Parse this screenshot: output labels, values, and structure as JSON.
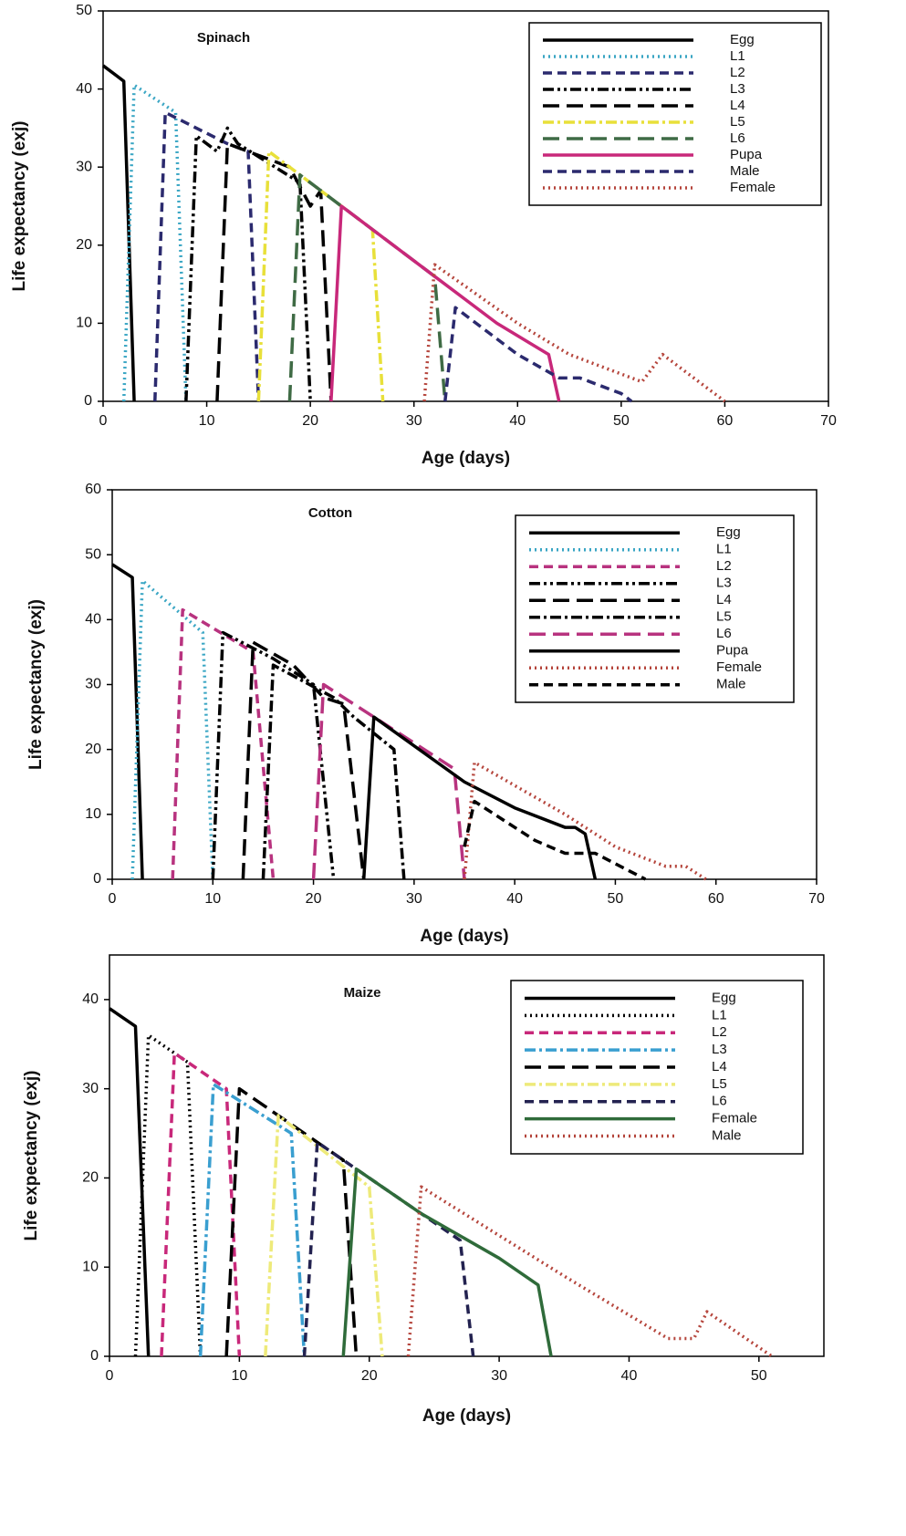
{
  "chart_data": [
    {
      "type": "line",
      "title": "Spinach",
      "xlabel": "Age (days)",
      "ylabel": "Life expectancy (exj)",
      "xlim": [
        0,
        70
      ],
      "xticks": [
        0,
        10,
        20,
        30,
        40,
        50,
        60,
        70
      ],
      "ylim": [
        0,
        50
      ],
      "yticks": [
        0,
        10,
        20,
        30,
        40,
        50
      ],
      "series": [
        {
          "name": "Egg",
          "color": "#000000",
          "dash": "solid",
          "x": [
            0,
            2,
            3
          ],
          "values": [
            43,
            41,
            0
          ]
        },
        {
          "name": "L1",
          "color": "#3aa6c4",
          "dash": "dotted",
          "x": [
            2,
            3,
            7,
            8
          ],
          "values": [
            0,
            40.5,
            37,
            0
          ]
        },
        {
          "name": "L2",
          "color": "#2b2a6e",
          "dash": "dashed",
          "x": [
            5,
            6,
            12,
            14,
            15
          ],
          "values": [
            0,
            37,
            33,
            32,
            0
          ]
        },
        {
          "name": "L3",
          "color": "#000000",
          "dash": "dashdotdot",
          "x": [
            8,
            9,
            11,
            12,
            13,
            19,
            20
          ],
          "values": [
            0,
            34,
            32,
            35,
            33,
            28,
            0
          ]
        },
        {
          "name": "L4",
          "color": "#000000",
          "dash": "longdash",
          "x": [
            11,
            12,
            18,
            20,
            21,
            22
          ],
          "values": [
            0,
            33,
            30,
            25,
            27,
            0
          ]
        },
        {
          "name": "L5",
          "color": "#e8e03a",
          "dash": "dashdot",
          "x": [
            15,
            16,
            26,
            27
          ],
          "values": [
            0,
            32,
            22,
            0
          ]
        },
        {
          "name": "L6",
          "color": "#3f6b45",
          "dash": "longdash",
          "x": [
            18,
            19,
            32,
            33
          ],
          "values": [
            0,
            29,
            16,
            0
          ]
        },
        {
          "name": "Pupa",
          "color": "#c8287a",
          "dash": "solid",
          "x": [
            22,
            23,
            32,
            38,
            43,
            44
          ],
          "values": [
            0,
            25,
            16,
            10,
            6,
            0
          ]
        },
        {
          "name": "Male",
          "color": "#2b2a6e",
          "dash": "dashed",
          "x": [
            33,
            34,
            40,
            44,
            46,
            50,
            51
          ],
          "values": [
            0,
            12,
            6,
            3,
            3,
            1,
            0
          ]
        },
        {
          "name": "Female",
          "color": "#b5453c",
          "dash": "dotted",
          "x": [
            31,
            32,
            40,
            45,
            50,
            52,
            54,
            57,
            60
          ],
          "values": [
            0,
            17.5,
            10,
            6,
            3.5,
            2.5,
            6,
            3,
            0
          ]
        }
      ]
    },
    {
      "type": "line",
      "title": "Cotton",
      "xlabel": "Age (days)",
      "ylabel": "Life expectancy (exj)",
      "xlim": [
        0,
        70
      ],
      "xticks": [
        0,
        10,
        20,
        30,
        40,
        50,
        60,
        70
      ],
      "ylim": [
        0,
        60
      ],
      "yticks": [
        0,
        10,
        20,
        30,
        40,
        50,
        60
      ],
      "series": [
        {
          "name": "Egg",
          "color": "#000000",
          "dash": "solid",
          "x": [
            0,
            2,
            3
          ],
          "values": [
            48.5,
            46.5,
            0
          ]
        },
        {
          "name": "L1",
          "color": "#3aa6c4",
          "dash": "dotted",
          "x": [
            2,
            3,
            9,
            10
          ],
          "values": [
            0,
            46,
            38,
            0
          ]
        },
        {
          "name": "L2",
          "color": "#b8337f",
          "dash": "dashed",
          "x": [
            6,
            7,
            14,
            16
          ],
          "values": [
            0,
            41.5,
            35,
            0
          ]
        },
        {
          "name": "L3",
          "color": "#000000",
          "dash": "dashdotdot",
          "x": [
            10,
            11,
            16,
            17,
            20,
            22
          ],
          "values": [
            0,
            38,
            34,
            33,
            30,
            0
          ]
        },
        {
          "name": "L4",
          "color": "#000000",
          "dash": "longdash",
          "x": [
            13,
            14,
            18,
            21,
            23,
            25
          ],
          "values": [
            0,
            36.5,
            33,
            28,
            27,
            0
          ]
        },
        {
          "name": "L5",
          "color": "#000000",
          "dash": "dashdot",
          "x": [
            15,
            16,
            22,
            24,
            28,
            29
          ],
          "values": [
            0,
            33,
            28,
            25,
            20,
            0
          ]
        },
        {
          "name": "L6",
          "color": "#b8337f",
          "dash": "longdash",
          "x": [
            20,
            21,
            34,
            35
          ],
          "values": [
            0,
            30,
            17,
            0
          ]
        },
        {
          "name": "Pupa",
          "color": "#000000",
          "dash": "solid",
          "x": [
            25,
            26,
            35,
            40,
            45,
            46,
            47,
            48
          ],
          "values": [
            0,
            25,
            15,
            11,
            8,
            8,
            7,
            0
          ]
        },
        {
          "name": "Female",
          "color": "#b5453c",
          "dash": "dotted",
          "x": [
            35,
            36,
            45,
            50,
            55,
            57,
            59
          ],
          "values": [
            0,
            18,
            10,
            5,
            2,
            2,
            0
          ]
        },
        {
          "name": "Male",
          "color": "#000000",
          "dash": "dashed",
          "x": [
            35,
            36,
            42,
            45,
            48,
            53
          ],
          "values": [
            5,
            12,
            6,
            4,
            4,
            0
          ]
        }
      ]
    },
    {
      "type": "line",
      "title": "Maize",
      "xlabel": "Age (days)",
      "ylabel": "Life expectancy (exj)",
      "xlim": [
        0,
        55
      ],
      "xticks": [
        0,
        10,
        20,
        30,
        40,
        50
      ],
      "ylim": [
        0,
        45
      ],
      "yticks": [
        0,
        10,
        20,
        30,
        40
      ],
      "series": [
        {
          "name": "Egg",
          "color": "#000000",
          "dash": "solid",
          "x": [
            0,
            2,
            3
          ],
          "values": [
            39,
            37,
            0
          ]
        },
        {
          "name": "L1",
          "color": "#000000",
          "dash": "dotted",
          "x": [
            2,
            3,
            6,
            7
          ],
          "values": [
            0,
            36,
            33,
            0
          ]
        },
        {
          "name": "L2",
          "color": "#c8287a",
          "dash": "dashed",
          "x": [
            4,
            5,
            7,
            9,
            10
          ],
          "values": [
            0,
            34,
            32,
            30,
            0
          ]
        },
        {
          "name": "L3",
          "color": "#3a9fd0",
          "dash": "dashdot",
          "x": [
            7,
            8,
            14,
            15
          ],
          "values": [
            0,
            30.5,
            25,
            0
          ]
        },
        {
          "name": "L4",
          "color": "#000000",
          "dash": "longdash",
          "x": [
            9,
            10,
            18,
            19
          ],
          "values": [
            0,
            30,
            22,
            0
          ]
        },
        {
          "name": "L5",
          "color": "#eeea7a",
          "dash": "dashdot",
          "x": [
            12,
            13,
            20,
            21
          ],
          "values": [
            0,
            27,
            19,
            0
          ]
        },
        {
          "name": "L6",
          "color": "#232250",
          "dash": "dashed",
          "x": [
            15,
            16,
            27,
            28
          ],
          "values": [
            0,
            24,
            13,
            0
          ]
        },
        {
          "name": "Female",
          "color": "#2f6b3a",
          "dash": "solid",
          "x": [
            18,
            19,
            24,
            30,
            33,
            34
          ],
          "values": [
            0,
            21,
            16,
            11,
            8,
            0
          ]
        },
        {
          "name": "Male",
          "color": "#b5453c",
          "dash": "dotted",
          "x": [
            23,
            24,
            35,
            43,
            45,
            46,
            51
          ],
          "values": [
            0,
            19,
            9,
            2,
            2,
            5,
            0
          ]
        }
      ]
    }
  ]
}
